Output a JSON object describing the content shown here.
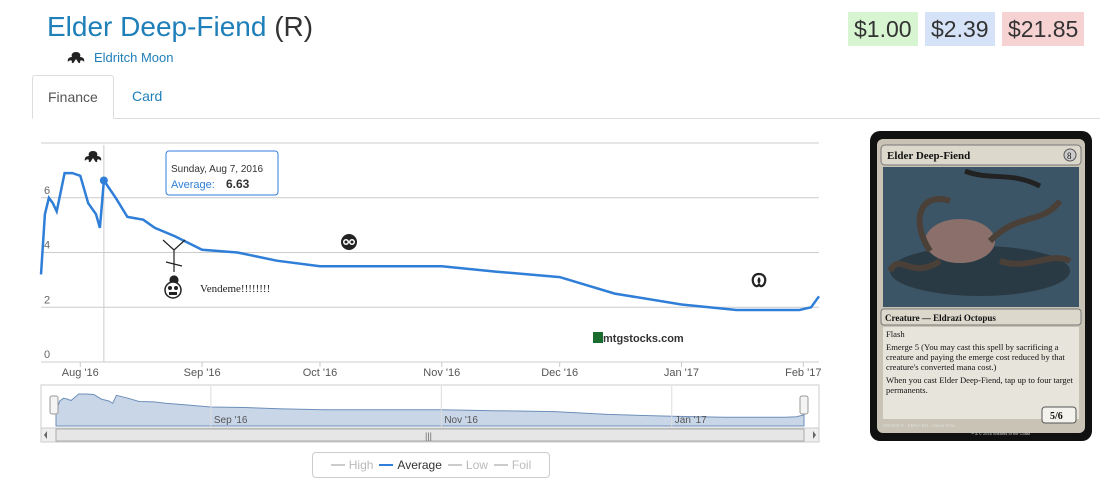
{
  "header": {
    "card_name": "Elder Deep-Fiend",
    "rarity": "(R)",
    "set_name": "Eldritch Moon",
    "set_icon": "eldritch-moon-set-icon"
  },
  "prices": [
    {
      "label": "$1.00",
      "bg": "#d7f5d0"
    },
    {
      "label": "$2.39",
      "bg": "#d5e2f7"
    },
    {
      "label": "$21.85",
      "bg": "#f6d2d2"
    }
  ],
  "tabs": [
    {
      "label": "Finance",
      "active": true
    },
    {
      "label": "Card",
      "active": false
    }
  ],
  "chart_data": {
    "type": "line",
    "series": [
      {
        "name": "Average",
        "color": "#2f7ed8",
        "x": [
          "2016-07-22",
          "2016-07-23",
          "2016-07-24",
          "2016-07-25",
          "2016-07-26",
          "2016-07-28",
          "2016-07-30",
          "2016-08-01",
          "2016-08-03",
          "2016-08-05",
          "2016-08-06",
          "2016-08-07",
          "2016-08-10",
          "2016-08-13",
          "2016-08-17",
          "2016-08-20",
          "2016-08-25",
          "2016-09-01",
          "2016-09-10",
          "2016-09-20",
          "2016-10-01",
          "2016-10-05",
          "2016-10-15",
          "2016-11-01",
          "2016-11-15",
          "2016-12-01",
          "2016-12-15",
          "2017-01-01",
          "2017-01-15",
          "2017-01-31",
          "2017-02-03",
          "2017-02-05"
        ],
        "y": [
          3.2,
          5.4,
          6.0,
          5.8,
          5.5,
          6.9,
          6.9,
          6.8,
          5.8,
          5.4,
          4.9,
          6.63,
          6.0,
          5.3,
          5.2,
          4.9,
          4.6,
          4.1,
          4.0,
          3.7,
          3.5,
          3.5,
          3.5,
          3.5,
          3.3,
          3.1,
          2.5,
          2.1,
          1.9,
          1.9,
          2.0,
          2.4
        ]
      }
    ],
    "x_ticks": [
      "Aug '16",
      "Sep '16",
      "Oct '16",
      "Nov '16",
      "Dec '16",
      "Jan '17",
      "Feb '17"
    ],
    "y_ticks": [
      "0",
      "2",
      "4",
      "6"
    ],
    "ylim": [
      0,
      8
    ],
    "tooltip": {
      "date": "Sunday, Aug 7, 2016",
      "label": "Average:",
      "value": "6.63"
    },
    "annotation": "Vendeme!!!!!!!!",
    "watermark": "mtgstocks.com",
    "navigator_labels": [
      "Sep '16",
      "Nov '16",
      "Jan '17"
    ],
    "grid": true
  },
  "legend": [
    {
      "label": "High",
      "on": false
    },
    {
      "label": "Average",
      "on": true
    },
    {
      "label": "Low",
      "on": false
    },
    {
      "label": "Foil",
      "on": false
    }
  ],
  "card_image": {
    "title": "Elder Deep-Fiend",
    "mana_cost": "8",
    "type_line": "Creature — Eldrazi Octopus",
    "rules": [
      "Flash",
      "Emerge 5 (You may cast this spell by sacrificing a creature and paying the emerge cost reduced by that creature's converted mana cost.)",
      "When you cast Elder Deep-Fiend, tap up to four target permanents."
    ],
    "pt": "5/6",
    "footer": "005/205 R · EMN • EN · Jason Felix",
    "copyright": "™ & © 2016 Wizards of the Coast"
  }
}
